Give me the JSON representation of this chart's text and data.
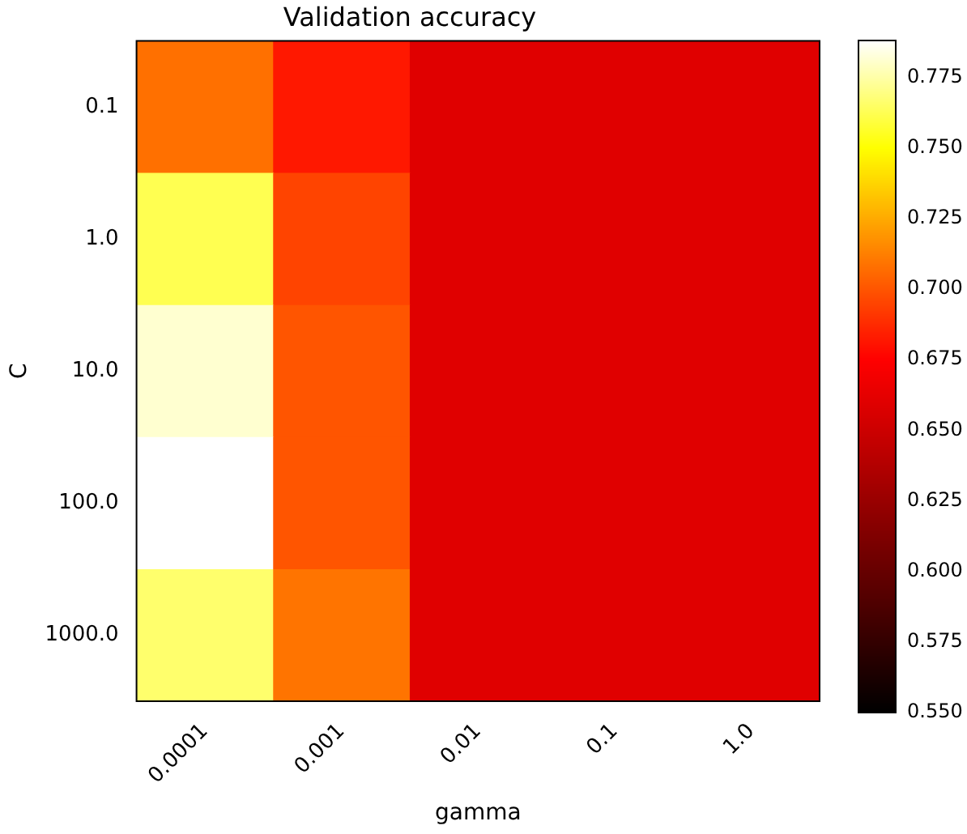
{
  "chart_data": {
    "type": "heatmap",
    "title": "Validation accuracy",
    "xlabel": "gamma",
    "ylabel": "C",
    "categories": [
      "0.0001",
      "0.001",
      "0.01",
      "0.1",
      "1.0"
    ],
    "y_categories": [
      "0.1",
      "1.0",
      "10.0",
      "100.0",
      "1000.0"
    ],
    "cells": [
      [
        0.708,
        0.682,
        0.66,
        0.66,
        0.66
      ],
      [
        0.762,
        0.695,
        0.66,
        0.66,
        0.66
      ],
      [
        0.781,
        0.7,
        0.66,
        0.66,
        0.66
      ],
      [
        0.788,
        0.7,
        0.66,
        0.66,
        0.66
      ],
      [
        0.766,
        0.709,
        0.66,
        0.66,
        0.66
      ]
    ],
    "clim": [
      0.55,
      0.788
    ],
    "cticks": [
      {
        "value": 0.55,
        "label": "0.550"
      },
      0.575,
      {
        "value": 0.6,
        "label": "0.600"
      },
      0.625,
      {
        "value": 0.65,
        "label": "0.650"
      },
      0.675,
      {
        "value": 0.7,
        "label": "0.700"
      },
      0.725,
      {
        "value": 0.75,
        "label": "0.750"
      },
      0.775
    ]
  }
}
